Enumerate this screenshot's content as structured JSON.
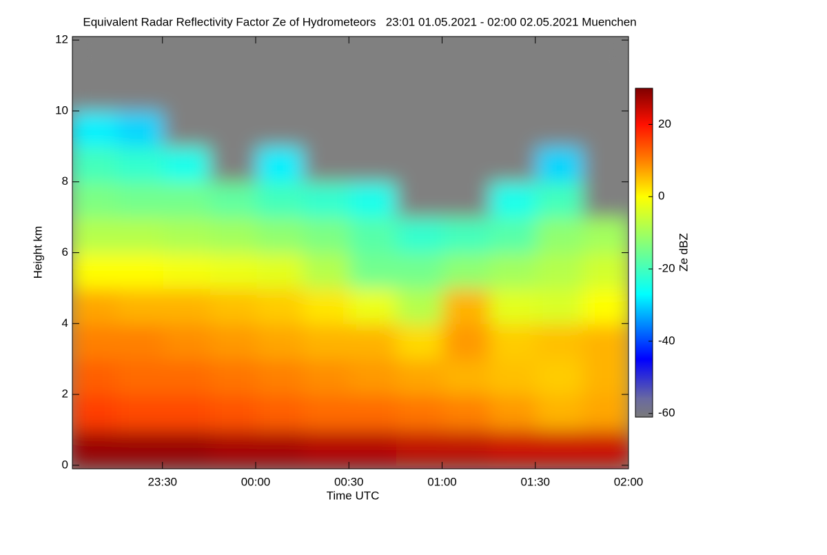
{
  "chart_data": {
    "type": "heatmap",
    "title": "Equivalent Radar Reflectivity Factor Ze of Hydrometeors   23:01 01.05.2021 - 02:00 02.05.2021 Muenchen",
    "xlabel": "Time UTC",
    "ylabel": "Height km",
    "colorbar_label": "Ze dBZ",
    "x": [
      -52,
      -37,
      -22,
      -7,
      8,
      23,
      38,
      53,
      68,
      83,
      98,
      113
    ],
    "y": [
      0.5,
      1.5,
      2.5,
      3.5,
      4.5,
      5.5,
      6.5,
      7.5,
      8.5,
      9.5,
      10.5,
      11.5
    ],
    "z": [
      [
        28,
        28,
        28,
        27,
        27,
        26,
        26,
        25,
        25,
        24,
        24,
        24
      ],
      [
        16,
        15,
        15,
        14,
        13,
        12,
        12,
        11,
        10,
        8,
        6,
        7
      ],
      [
        13,
        12,
        12,
        11,
        10,
        9,
        8,
        7,
        6,
        5,
        4,
        6
      ],
      [
        10,
        10,
        9,
        8,
        7,
        6,
        6,
        3,
        8,
        4,
        5,
        6
      ],
      [
        7,
        6,
        6,
        5,
        4,
        2,
        -2,
        -8,
        6,
        -3,
        -4,
        0
      ],
      [
        0,
        0,
        -1,
        -2,
        -3,
        -8,
        -15,
        -15,
        -12,
        -10,
        -8,
        -5
      ],
      [
        -8,
        -8,
        -9,
        -10,
        -12,
        -14,
        -18,
        -22,
        -20,
        -18,
        -12,
        -10
      ],
      [
        -14,
        -15,
        -15,
        -17,
        -20,
        -22,
        -25,
        null,
        null,
        -25,
        -20,
        null
      ],
      [
        -20,
        -22,
        -25,
        null,
        -28,
        null,
        null,
        null,
        null,
        null,
        -30,
        null
      ],
      [
        -28,
        -30,
        null,
        null,
        null,
        null,
        null,
        null,
        null,
        null,
        null,
        null
      ],
      [
        null,
        null,
        null,
        null,
        null,
        null,
        null,
        null,
        null,
        null,
        null,
        null
      ],
      [
        null,
        null,
        null,
        null,
        null,
        null,
        null,
        null,
        null,
        null,
        null,
        null
      ]
    ],
    "xlim": [
      -59,
      120
    ],
    "ylim": [
      -0.1,
      12.1
    ],
    "xticks": [
      {
        "value": -30,
        "label": "23:30"
      },
      {
        "value": 0,
        "label": "00:00"
      },
      {
        "value": 30,
        "label": "00:30"
      },
      {
        "value": 60,
        "label": "01:00"
      },
      {
        "value": 90,
        "label": "01:30"
      },
      {
        "value": 120,
        "label": "02:00"
      }
    ],
    "yticks": [
      0,
      2,
      4,
      6,
      8,
      10,
      12
    ],
    "clim": [
      -61,
      30
    ],
    "cticks": [
      -60,
      -40,
      -20,
      0,
      20
    ],
    "missing_color": "#808080",
    "colorscale": [
      {
        "value": -61,
        "color": "#7a7a7a"
      },
      {
        "value": -56,
        "color": "#6a6aa0"
      },
      {
        "value": -45,
        "color": "#0000ff"
      },
      {
        "value": -27,
        "color": "#00ffff"
      },
      {
        "value": -12,
        "color": "#90ff70"
      },
      {
        "value": 0,
        "color": "#ffff00"
      },
      {
        "value": 10,
        "color": "#ff8000"
      },
      {
        "value": 20,
        "color": "#ff1000"
      },
      {
        "value": 30,
        "color": "#800000"
      }
    ]
  }
}
